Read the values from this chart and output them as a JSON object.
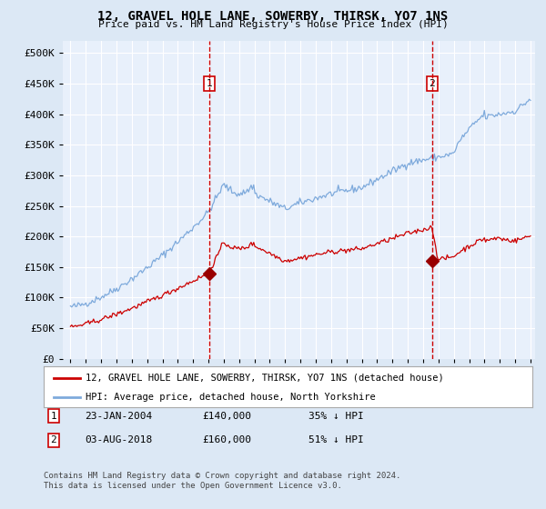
{
  "title": "12, GRAVEL HOLE LANE, SOWERBY, THIRSK, YO7 1NS",
  "subtitle": "Price paid vs. HM Land Registry's House Price Index (HPI)",
  "legend_red": "12, GRAVEL HOLE LANE, SOWERBY, THIRSK, YO7 1NS (detached house)",
  "legend_blue": "HPI: Average price, detached house, North Yorkshire",
  "annotation1_label": "1",
  "annotation1_date": "23-JAN-2004",
  "annotation1_price": "£140,000",
  "annotation1_hpi": "35% ↓ HPI",
  "annotation2_label": "2",
  "annotation2_date": "03-AUG-2018",
  "annotation2_price": "£160,000",
  "annotation2_hpi": "51% ↓ HPI",
  "footer": "Contains HM Land Registry data © Crown copyright and database right 2024.\nThis data is licensed under the Open Government Licence v3.0.",
  "bg_color": "#dce8f5",
  "plot_bg_color": "#e8f0fb",
  "grid_color": "#ffffff",
  "red_color": "#cc0000",
  "blue_color": "#7eaadc",
  "red_marker_color": "#990000",
  "vline_color": "#cc0000",
  "year_start": 1995,
  "year_end": 2025,
  "ylim_min": 0,
  "ylim_max": 520000,
  "sale1_year": 2004.06,
  "sale1_value": 140000,
  "sale2_year": 2018.58,
  "sale2_value": 160000
}
